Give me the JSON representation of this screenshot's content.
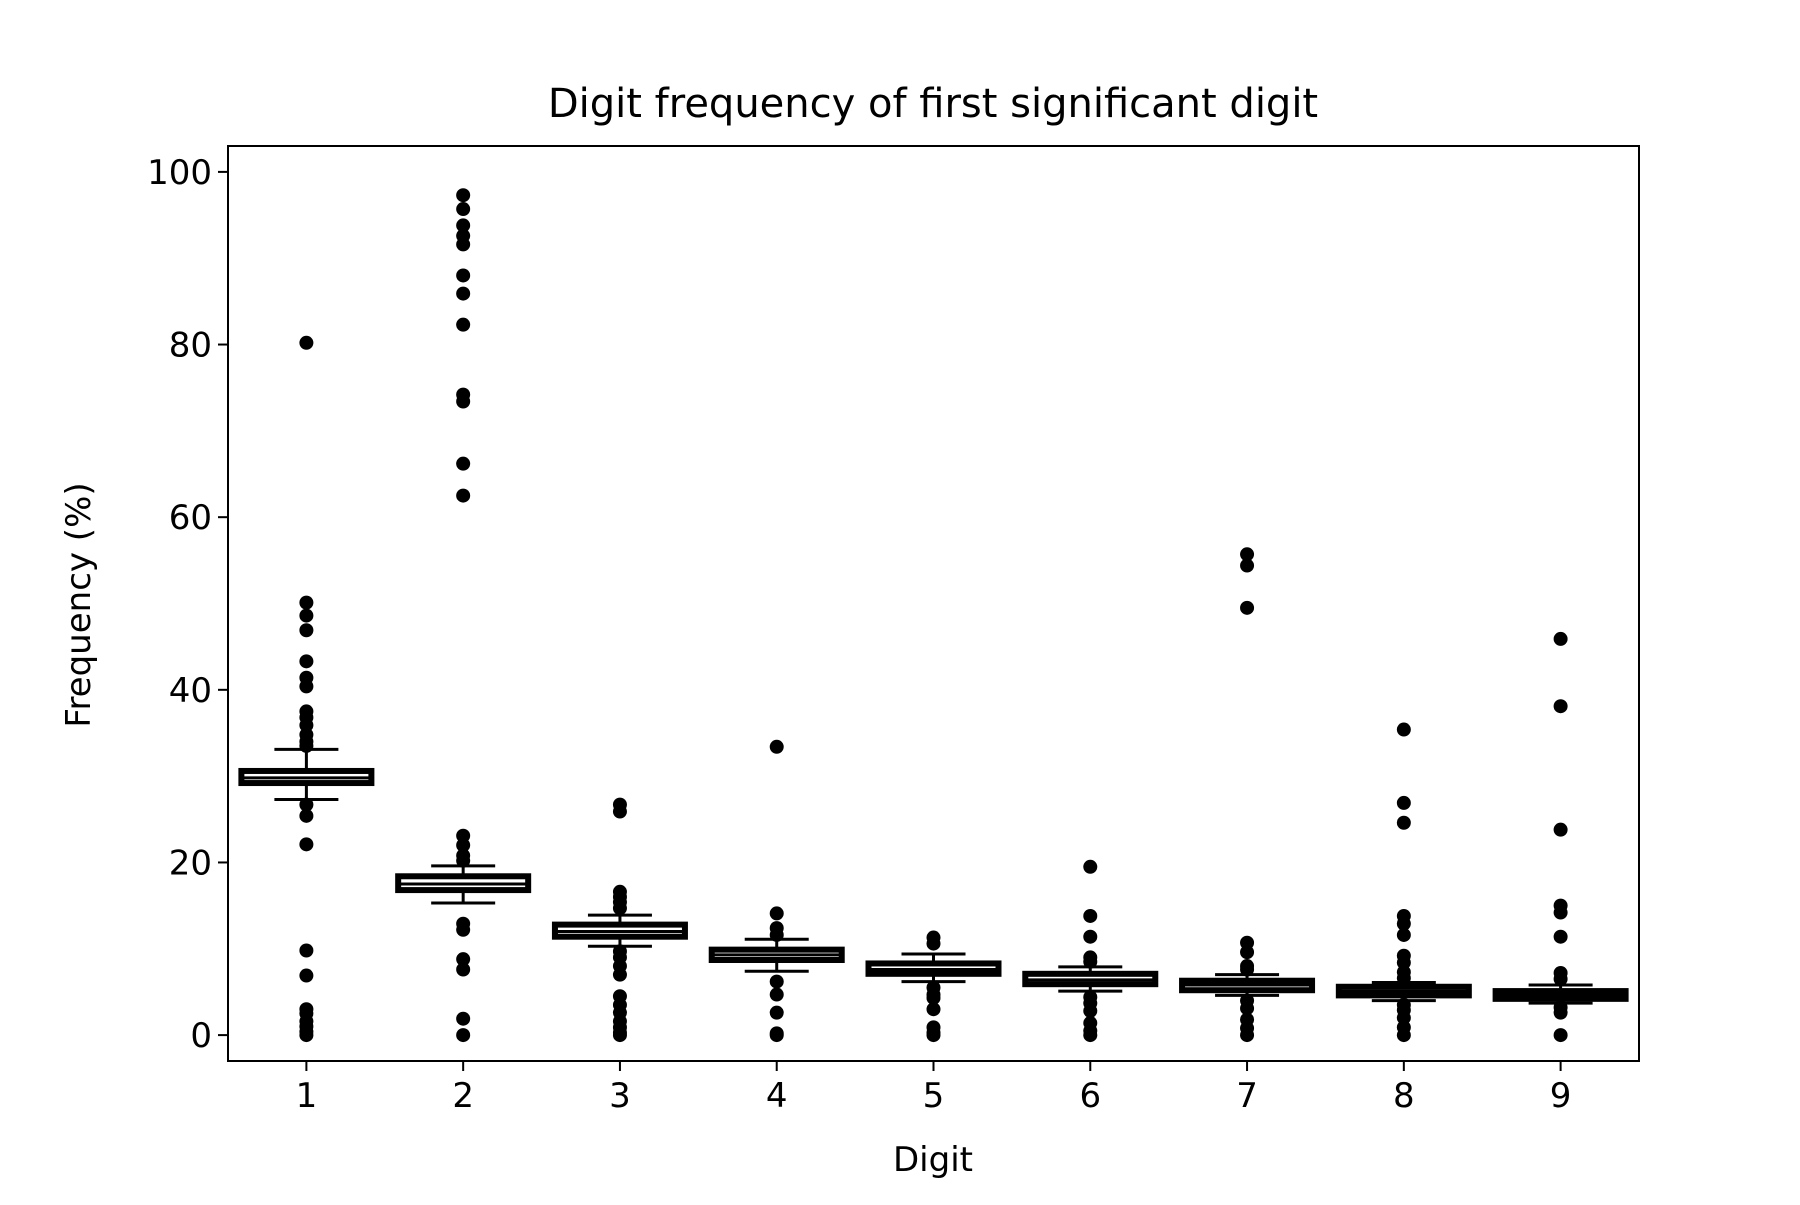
{
  "chart_data": {
    "type": "box",
    "title": "Digit frequency of first significant digit",
    "xlabel": "Digit",
    "ylabel": "Frequency (%)",
    "ylim": [
      -3,
      103
    ],
    "xlim": [
      0.5,
      9.5
    ],
    "yticks": [
      0,
      20,
      40,
      60,
      80,
      100
    ],
    "categories": [
      "1",
      "2",
      "3",
      "4",
      "5",
      "6",
      "7",
      "8",
      "9"
    ],
    "grid": false,
    "legend": false,
    "color": "#000000",
    "boxes": [
      {
        "digit": "1",
        "whisker_low": 27.3,
        "q1": 29.2,
        "median": 29.8,
        "q3": 30.6,
        "whisker_high": 33.1,
        "outliers": [
          80.2,
          50.1,
          48.6,
          46.9,
          43.3,
          41.4,
          40.4,
          37.5,
          36.8,
          35.9,
          34.8,
          34.0,
          33.5,
          26.7,
          25.4,
          22.1,
          9.8,
          6.9,
          3.0,
          2.5,
          1.6,
          1.0,
          0.4,
          0.0
        ]
      },
      {
        "digit": "2",
        "whisker_low": 15.3,
        "q1": 16.8,
        "median": 17.5,
        "q3": 18.4,
        "whisker_high": 19.6,
        "outliers": [
          97.3,
          95.7,
          93.8,
          92.6,
          91.6,
          88.0,
          85.9,
          82.3,
          74.2,
          73.4,
          66.2,
          62.5,
          23.1,
          22.0,
          20.8,
          20.2,
          12.9,
          12.2,
          8.8,
          7.6,
          1.9,
          0.0
        ]
      },
      {
        "digit": "3",
        "whisker_low": 10.3,
        "q1": 11.4,
        "median": 12.0,
        "q3": 12.8,
        "whisker_high": 13.9,
        "outliers": [
          26.7,
          25.9,
          16.6,
          16.0,
          15.4,
          14.7,
          9.7,
          9.0,
          8.0,
          7.0,
          4.5,
          3.5,
          2.6,
          1.6,
          0.9,
          0.3,
          0.0
        ]
      },
      {
        "digit": "4",
        "whisker_low": 7.4,
        "q1": 8.7,
        "median": 9.3,
        "q3": 9.9,
        "whisker_high": 11.1,
        "outliers": [
          33.4,
          14.1,
          12.4,
          11.6,
          6.2,
          4.7,
          2.6,
          0.2,
          0.0
        ]
      },
      {
        "digit": "5",
        "whisker_low": 6.2,
        "q1": 7.1,
        "median": 7.6,
        "q3": 8.3,
        "whisker_high": 9.4,
        "outliers": [
          11.3,
          10.6,
          5.5,
          4.7,
          4.3,
          3.0,
          0.9,
          0.3,
          0.0
        ]
      },
      {
        "digit": "6",
        "whisker_low": 5.1,
        "q1": 5.9,
        "median": 6.4,
        "q3": 7.1,
        "whisker_high": 7.9,
        "outliers": [
          19.5,
          13.8,
          11.4,
          9.0,
          8.5,
          4.4,
          3.7,
          2.8,
          1.4,
          0.5,
          0.0
        ]
      },
      {
        "digit": "7",
        "whisker_low": 4.6,
        "q1": 5.2,
        "median": 5.8,
        "q3": 6.3,
        "whisker_high": 7.0,
        "outliers": [
          55.7,
          54.4,
          49.5,
          10.7,
          9.6,
          8.0,
          7.6,
          4.0,
          3.1,
          1.8,
          0.8,
          0.0
        ]
      },
      {
        "digit": "8",
        "whisker_low": 4.0,
        "q1": 4.6,
        "median": 5.1,
        "q3": 5.6,
        "whisker_high": 6.1,
        "outliers": [
          35.4,
          26.9,
          24.6,
          13.8,
          12.9,
          11.6,
          9.2,
          8.4,
          7.3,
          6.6,
          3.5,
          2.9,
          2.0,
          0.9,
          0.0
        ]
      },
      {
        "digit": "9",
        "whisker_low": 3.7,
        "q1": 4.2,
        "median": 4.6,
        "q3": 5.1,
        "whisker_high": 5.8,
        "outliers": [
          45.9,
          38.1,
          23.8,
          15.0,
          14.2,
          11.4,
          7.2,
          6.5,
          3.2,
          2.6,
          0.0
        ]
      }
    ]
  }
}
